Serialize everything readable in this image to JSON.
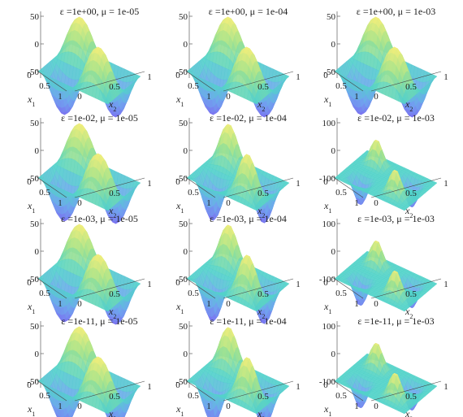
{
  "chart_data": {
    "type": "surface",
    "grid": false,
    "panels": [
      {
        "title": "ε =1e+00, μ = 1e-05",
        "zlim": [
          -80,
          60
        ],
        "zticks": [
          "50",
          "0",
          "-50"
        ],
        "xlabel": "x1",
        "ylabel": "x2",
        "xticks": [
          "0",
          "0.5",
          "1"
        ],
        "yticks": [
          "0",
          "0.5",
          "1"
        ],
        "amplitude": 75,
        "sharpness": 1.0
      },
      {
        "title": "ε =1e+00, μ = 1e-04",
        "zlim": [
          -80,
          60
        ],
        "zticks": [
          "50",
          "0",
          "-50"
        ],
        "xlabel": "x1",
        "ylabel": "x2",
        "xticks": [
          "0",
          "0.5",
          "1"
        ],
        "yticks": [
          "0",
          "0.5",
          "1"
        ],
        "amplitude": 75,
        "sharpness": 1.0
      },
      {
        "title": "ε =1e+00, μ = 1e-03",
        "zlim": [
          -80,
          60
        ],
        "zticks": [
          "50",
          "0",
          "-50"
        ],
        "xlabel": "x1",
        "ylabel": "x2",
        "xticks": [
          "0",
          "0.5",
          "1"
        ],
        "yticks": [
          "0",
          "0.5",
          "1"
        ],
        "amplitude": 75,
        "sharpness": 1.0
      },
      {
        "title": "ε =1e-02, μ = 1e-05",
        "zlim": [
          -80,
          60
        ],
        "zticks": [
          "50",
          "0",
          "-50"
        ],
        "xlabel": "x1",
        "ylabel": "x2",
        "xticks": [
          "0",
          "0.5",
          "1"
        ],
        "yticks": [
          "0",
          "0.5",
          "1"
        ],
        "amplitude": 75,
        "sharpness": 1.0
      },
      {
        "title": "ε =1e-02, μ = 1e-04",
        "zlim": [
          -80,
          60
        ],
        "zticks": [
          "50",
          "0",
          "-50"
        ],
        "xlabel": "x1",
        "ylabel": "x2",
        "xticks": [
          "0",
          "0.5",
          "1"
        ],
        "yticks": [
          "0",
          "0.5",
          "1"
        ],
        "amplitude": 75,
        "sharpness": 1.8
      },
      {
        "title": "ε =1e-02, μ = 1e-03",
        "zlim": [
          -150,
          150
        ],
        "zticks": [
          "100",
          "0",
          "-100"
        ],
        "xlabel": "x1",
        "ylabel": "x2",
        "xticks": [
          "0",
          "0.5",
          "1"
        ],
        "yticks": [
          "0",
          "0.5",
          "1"
        ],
        "amplitude": 95,
        "sharpness": 4.0
      },
      {
        "title": "ε =1e-03, μ = 1e-05",
        "zlim": [
          -80,
          60
        ],
        "zticks": [
          "50",
          "0",
          "-50"
        ],
        "xlabel": "x1",
        "ylabel": "x2",
        "xticks": [
          "0",
          "0.5",
          "1"
        ],
        "yticks": [
          "0",
          "0.5",
          "1"
        ],
        "amplitude": 75,
        "sharpness": 1.0
      },
      {
        "title": "ε =1e-03, μ = 1e-04",
        "zlim": [
          -80,
          60
        ],
        "zticks": [
          "50",
          "0",
          "-50"
        ],
        "xlabel": "x1",
        "ylabel": "x2",
        "xticks": [
          "0",
          "0.5",
          "1"
        ],
        "yticks": [
          "0",
          "0.5",
          "1"
        ],
        "amplitude": 75,
        "sharpness": 1.8
      },
      {
        "title": "ε =1e-03, μ = 1e-03",
        "zlim": [
          -150,
          150
        ],
        "zticks": [
          "100",
          "0",
          "-100"
        ],
        "xlabel": "x1",
        "ylabel": "x2",
        "xticks": [
          "0",
          "0.5",
          "1"
        ],
        "yticks": [
          "0",
          "0.5",
          "1"
        ],
        "amplitude": 95,
        "sharpness": 4.0
      },
      {
        "title": "ε =1e-11, μ = 1e-05",
        "zlim": [
          -80,
          60
        ],
        "zticks": [
          "50",
          "0",
          "-50"
        ],
        "xlabel": "x1",
        "ylabel": "x2",
        "xticks": [
          "0",
          "0.5",
          "1"
        ],
        "yticks": [
          "0",
          "0.5",
          "1"
        ],
        "amplitude": 75,
        "sharpness": 1.0
      },
      {
        "title": "ε =1e-11, μ = 1e-04",
        "zlim": [
          -80,
          60
        ],
        "zticks": [
          "50",
          "0",
          "-50"
        ],
        "xlabel": "x1",
        "ylabel": "x2",
        "xticks": [
          "0",
          "0.5",
          "1"
        ],
        "yticks": [
          "0",
          "0.5",
          "1"
        ],
        "amplitude": 75,
        "sharpness": 1.8
      },
      {
        "title": "ε =1e-11, μ = 1e-03",
        "zlim": [
          -150,
          150
        ],
        "zticks": [
          "100",
          "0",
          "-100"
        ],
        "xlabel": "x1",
        "ylabel": "x2",
        "xticks": [
          "0",
          "0.5",
          "1"
        ],
        "yticks": [
          "0",
          "0.5",
          "1"
        ],
        "amplitude": 95,
        "sharpness": 4.0
      }
    ],
    "colormap": [
      "#7b6cf0",
      "#6fa6ef",
      "#52d3c9",
      "#a6e38c",
      "#f4ee7a"
    ]
  }
}
